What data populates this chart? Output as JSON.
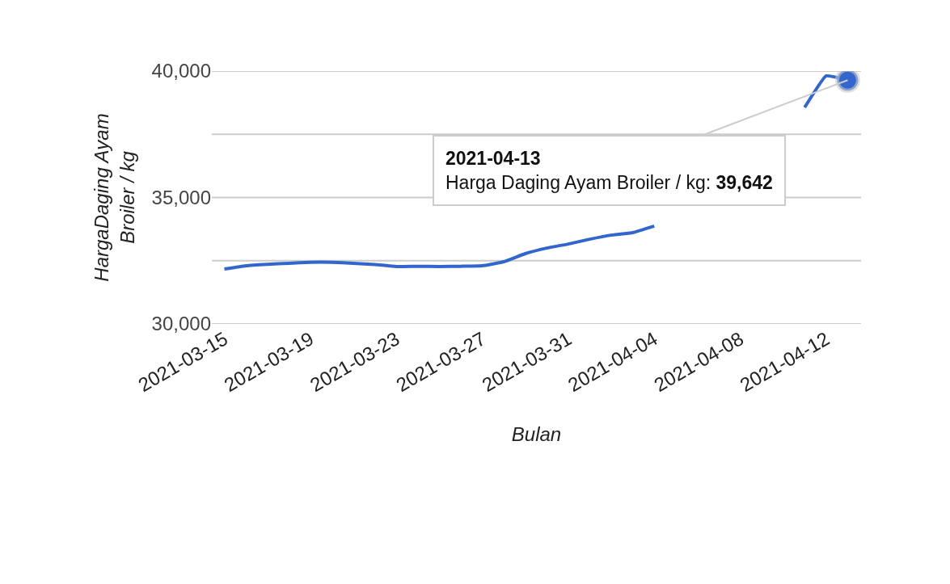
{
  "chart_data": {
    "type": "line",
    "xlabel": "Bulan",
    "ylabel": "HargaDaging Ayam\nBroiler / kg",
    "x": [
      "2021-03-15",
      "2021-03-16",
      "2021-03-17",
      "2021-03-18",
      "2021-03-19",
      "2021-03-20",
      "2021-03-21",
      "2021-03-22",
      "2021-03-23",
      "2021-03-24",
      "2021-03-25",
      "2021-03-26",
      "2021-03-27",
      "2021-03-28",
      "2021-03-29",
      "2021-03-30",
      "2021-03-31",
      "2021-04-01",
      "2021-04-02",
      "2021-04-03",
      "2021-04-04",
      "2021-04-05",
      "2021-04-06",
      "2021-04-07",
      "2021-04-08",
      "2021-04-09",
      "2021-04-10",
      "2021-04-11",
      "2021-04-12",
      "2021-04-13"
    ],
    "series": [
      {
        "color": "#3366cc",
        "values": [
          32170,
          32300,
          32360,
          32400,
          32440,
          32440,
          32400,
          32350,
          32270,
          32280,
          32270,
          32280,
          32300,
          32460,
          32780,
          33000,
          33160,
          33350,
          33510,
          33610,
          33870,
          null,
          null,
          null,
          null,
          null,
          null,
          38560,
          39810,
          39642
        ]
      }
    ],
    "xlim": [
      "2021-03-14T10:00",
      "2021-04-13T15:00"
    ],
    "xticks": [
      {
        "value": "2021-03-15",
        "label": "2021-03-15"
      },
      {
        "value": "2021-03-19",
        "label": "2021-03-19"
      },
      {
        "value": "2021-03-23",
        "label": "2021-03-23"
      },
      {
        "value": "2021-03-27",
        "label": "2021-03-27"
      },
      {
        "value": "2021-03-31",
        "label": "2021-03-31"
      },
      {
        "value": "2021-04-04",
        "label": "2021-04-04"
      },
      {
        "value": "2021-04-08",
        "label": "2021-04-08"
      },
      {
        "value": "2021-04-12",
        "label": "2021-04-12"
      }
    ],
    "ylim": [
      30000,
      40000
    ],
    "yticks": [
      {
        "value": 30000,
        "label": "30,000"
      },
      {
        "value": 32500,
        "label": null
      },
      {
        "value": 35000,
        "label": "35,000"
      },
      {
        "value": 37500,
        "label": null
      },
      {
        "value": 40000,
        "label": "40,000"
      }
    ],
    "grid": "y",
    "marker": "none",
    "line_style": "solid",
    "annotations": [
      {
        "text": "2021-04-13\nHarga Daging Ayam Broiler / kg: 39,642",
        "x": "2021-04-13",
        "y": 39642
      }
    ]
  }
}
